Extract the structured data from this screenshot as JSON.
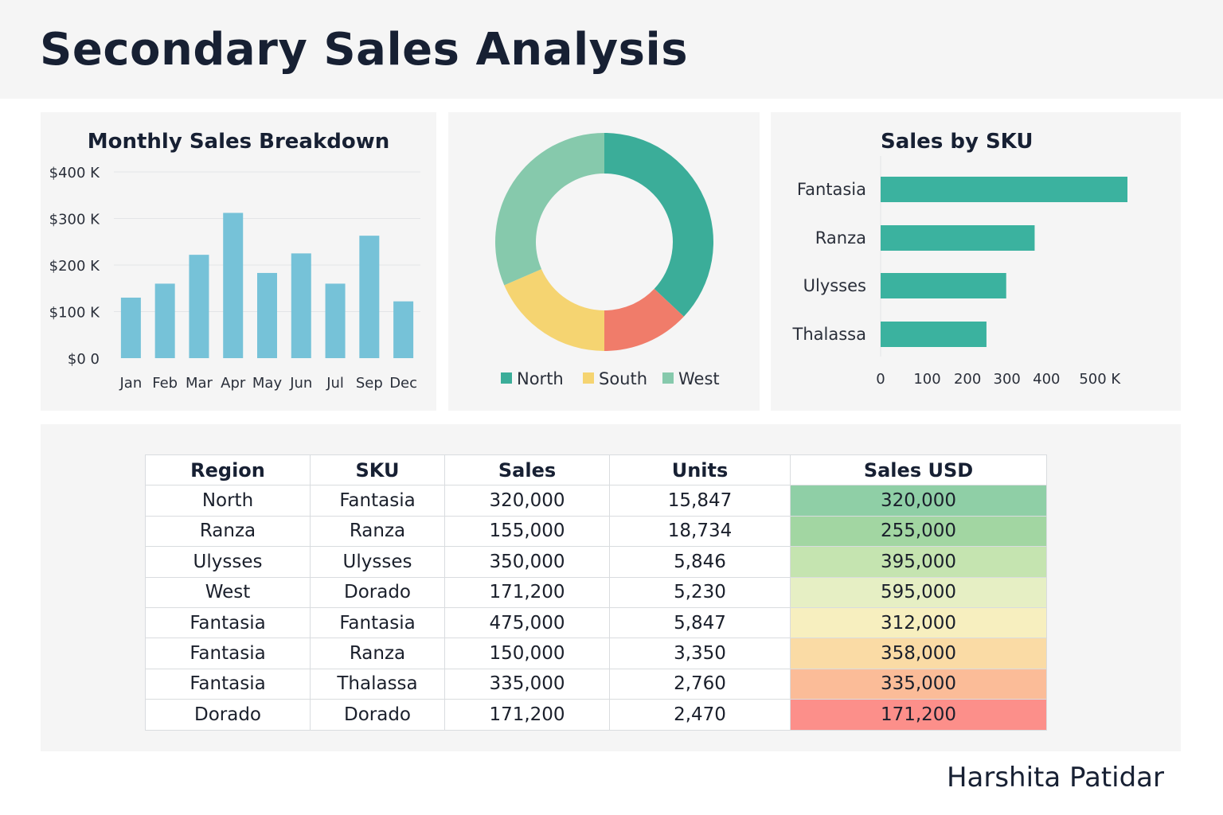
{
  "title": "Secondary Sales Analysis",
  "author": "Harshita Patidar",
  "colors": {
    "bar": "#76c2d8",
    "north": "#3bad99",
    "south": "#f5d471",
    "west": "#86c9ac",
    "unlabeled_segment": "#f07c6a",
    "sku_bar": "#3bb29f"
  },
  "chart_data": [
    {
      "type": "bar",
      "title": "Monthly Sales Breakdown",
      "categories": [
        "Jan",
        "Feb",
        "Mar",
        "Apr",
        "May",
        "Jun",
        "Jul",
        "Sep",
        "Dec"
      ],
      "values": [
        130000,
        160000,
        222000,
        312000,
        183000,
        225000,
        160000,
        263000,
        122000
      ],
      "ylim": [
        0,
        400000
      ],
      "yticks": [
        {
          "value": 0,
          "label": "$0 0"
        },
        {
          "value": 100000,
          "label": "$100 K"
        },
        {
          "value": 200000,
          "label": "$200 K"
        },
        {
          "value": 300000,
          "label": "$300 K"
        },
        {
          "value": 400000,
          "label": "$400 K"
        }
      ],
      "grid": true
    },
    {
      "type": "pie",
      "donut": true,
      "slices": [
        {
          "name": "North",
          "share": 0.37,
          "color": "#3bad99"
        },
        {
          "name": "",
          "share": 0.13,
          "color": "#f07c6a"
        },
        {
          "name": "South",
          "share": 0.185,
          "color": "#f5d471"
        },
        {
          "name": "West",
          "share": 0.315,
          "color": "#86c9ac"
        }
      ],
      "legend": [
        "North",
        "South",
        "West"
      ],
      "legend_position": "bottom"
    },
    {
      "type": "bar",
      "orientation": "horizontal",
      "title": "Sales by SKU",
      "categories": [
        "Fantasia",
        "Ranza",
        "Ulysses",
        "Thalassa"
      ],
      "values": [
        625,
        390,
        318,
        268
      ],
      "xticks": [
        {
          "value": 0,
          "label": "0"
        },
        {
          "value": 118,
          "label": "100"
        },
        {
          "value": 220,
          "label": "200"
        },
        {
          "value": 320,
          "label": "300"
        },
        {
          "value": 420,
          "label": "400"
        },
        {
          "value": 555,
          "label": "500 K"
        }
      ],
      "xlim": [
        0,
        625
      ]
    },
    {
      "type": "table",
      "columns": [
        "Region",
        "SKU",
        "Sales",
        "Units",
        "Sales USD"
      ],
      "rows": [
        [
          "North",
          "Fantasia",
          "320,000",
          "15,847",
          "320,000"
        ],
        [
          "Ranza",
          "Ranza",
          "155,000",
          "18,734",
          "255,000"
        ],
        [
          "Ulysses",
          "Ulysses",
          "350,000",
          "5,846",
          "395,000"
        ],
        [
          "West",
          "Dorado",
          "171,200",
          "5,230",
          "595,000"
        ],
        [
          "Fantasia",
          "Fantasia",
          "475,000",
          "5,847",
          "312,000"
        ],
        [
          "Fantasia",
          "Ranza",
          "150,000",
          "3,350",
          "358,000"
        ],
        [
          "Fantasia",
          "Thalassa",
          "335,000",
          "2,760",
          "335,000"
        ],
        [
          "Dorado",
          "Dorado",
          "171,200",
          "2,470",
          "171,200"
        ]
      ],
      "heat_colors": [
        "#8fcfa6",
        "#a2d6a2",
        "#c5e4b0",
        "#e6efc4",
        "#f7efbf",
        "#fadba5",
        "#fbbc98",
        "#fc8f8a"
      ]
    }
  ]
}
